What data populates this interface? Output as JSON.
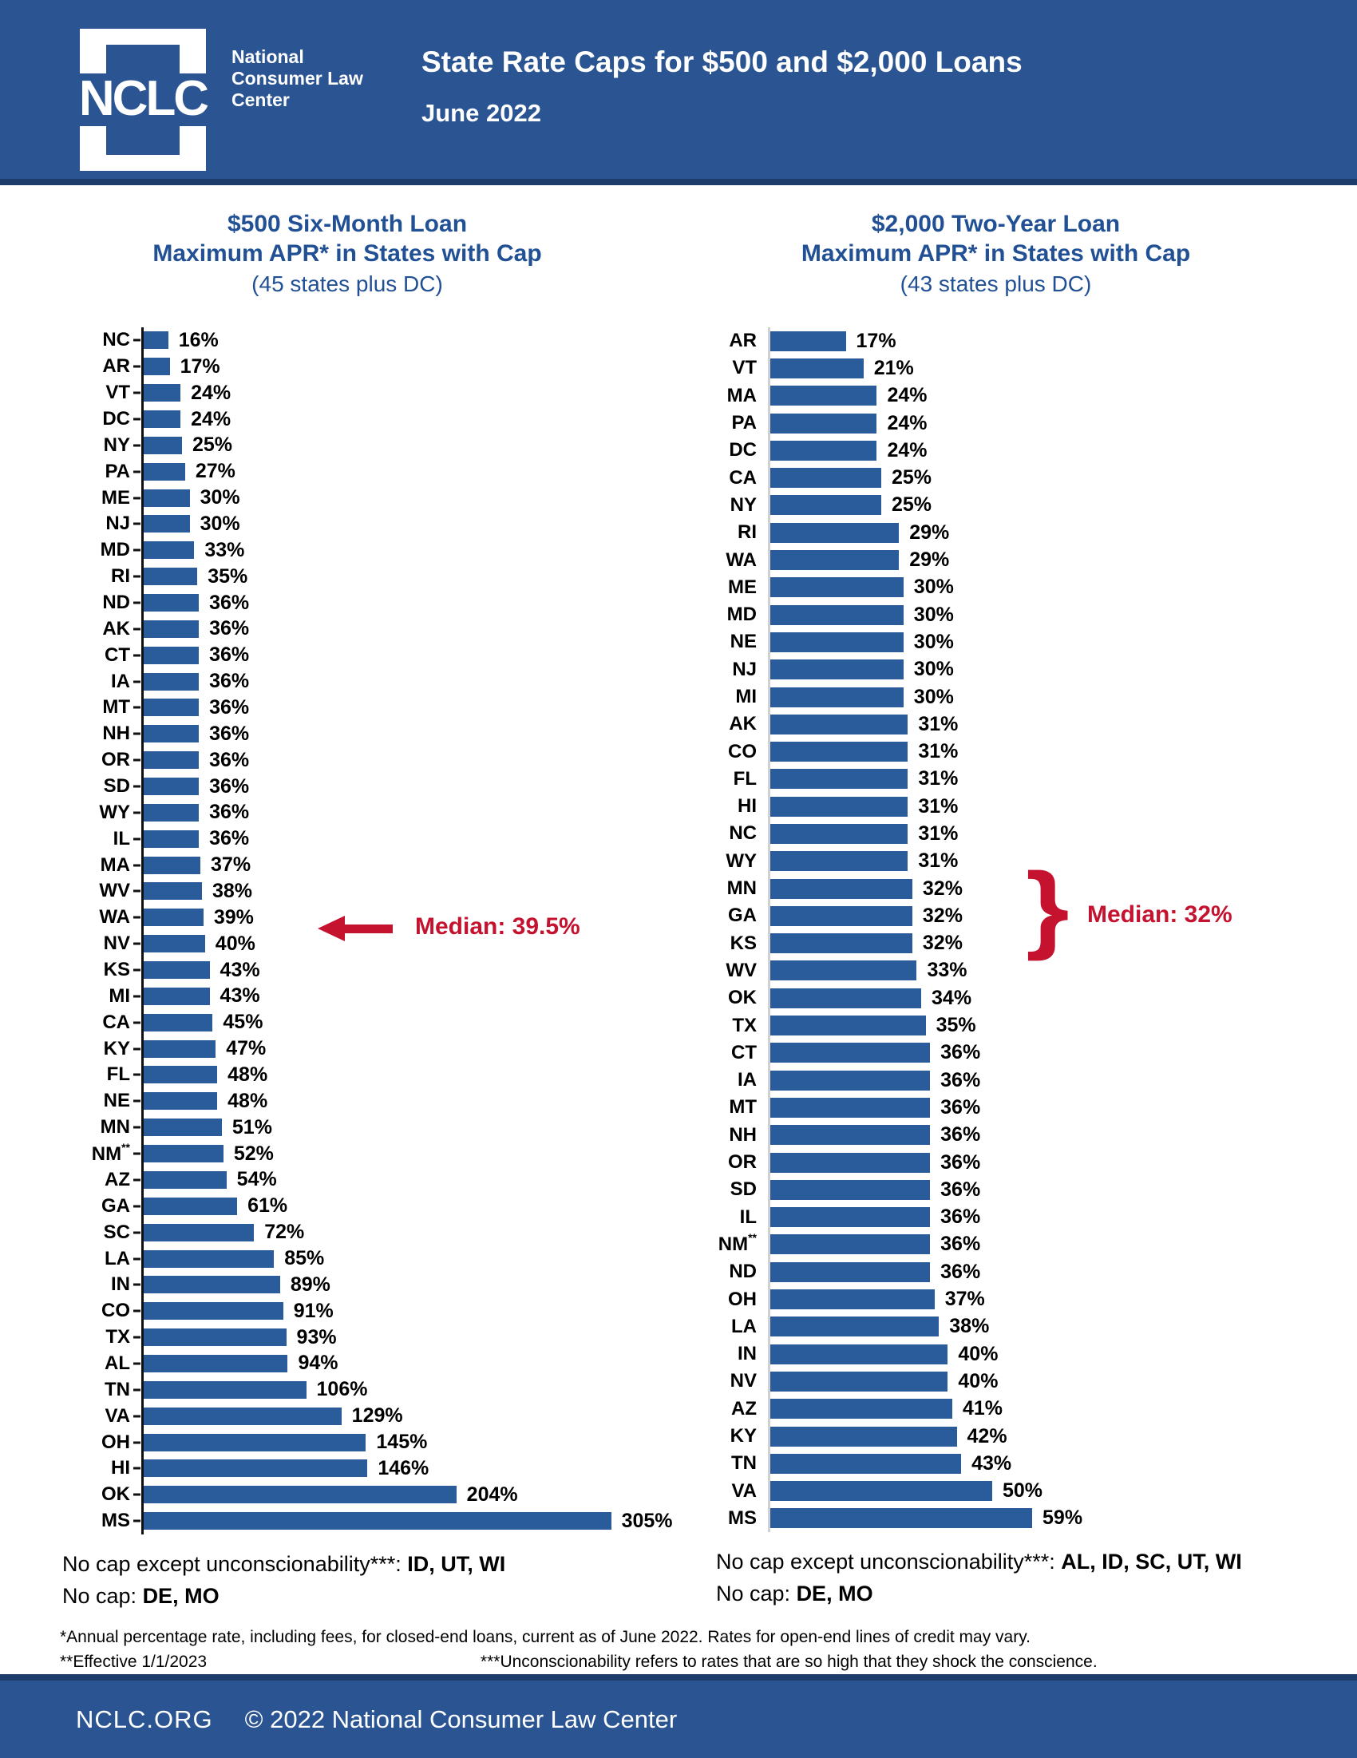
{
  "header": {
    "logo_acronym": "NCLC",
    "logo_name": "National Consumer Law Center",
    "title": "State Rate Caps for $500 and $2,000 Loans",
    "date": "June 2022"
  },
  "chart_data": [
    {
      "type": "bar",
      "orientation": "horizontal",
      "title_line1": "$500 Six-Month Loan",
      "title_line2": "Maximum APR* in States with Cap",
      "subtitle": "(45 states plus DC)",
      "value_suffix": "%",
      "categories": [
        "NC",
        "AR",
        "VT",
        "DC",
        "NY",
        "PA",
        "ME",
        "NJ",
        "MD",
        "RI",
        "ND",
        "AK",
        "CT",
        "IA",
        "MT",
        "NH",
        "OR",
        "SD",
        "WY",
        "IL",
        "MA",
        "WV",
        "WA",
        "NV",
        "KS",
        "MI",
        "CA",
        "KY",
        "FL",
        "NE",
        "MN",
        "NM**",
        "AZ",
        "GA",
        "SC",
        "LA",
        "IN",
        "CO",
        "TX",
        "AL",
        "TN",
        "VA",
        "OH",
        "HI",
        "OK",
        "MS"
      ],
      "values": [
        16,
        17,
        24,
        24,
        25,
        27,
        30,
        30,
        33,
        35,
        36,
        36,
        36,
        36,
        36,
        36,
        36,
        36,
        36,
        36,
        37,
        38,
        39,
        40,
        43,
        43,
        45,
        47,
        48,
        48,
        51,
        52,
        54,
        61,
        72,
        85,
        89,
        91,
        93,
        94,
        106,
        129,
        145,
        146,
        204,
        305
      ],
      "xlim": [
        0,
        320
      ],
      "grid": false,
      "median": 39.5,
      "median_label": "Median: 39.5%",
      "annotation_style": "arrow",
      "no_cap_except_label": "No cap except unconscionability***: ",
      "no_cap_except_states": [
        "ID",
        "UT",
        "WI"
      ],
      "no_cap_label": "No cap: ",
      "no_cap_states": [
        "DE",
        "MO"
      ]
    },
    {
      "type": "bar",
      "orientation": "horizontal",
      "title_line1": "$2,000 Two-Year Loan",
      "title_line2": "Maximum APR* in States with Cap",
      "subtitle": "(43 states plus DC)",
      "value_suffix": "%",
      "categories": [
        "AR",
        "VT",
        "MA",
        "PA",
        "DC",
        "CA",
        "NY",
        "RI",
        "WA",
        "ME",
        "MD",
        "NE",
        "NJ",
        "MI",
        "AK",
        "CO",
        "FL",
        "HI",
        "NC",
        "WY",
        "MN",
        "GA",
        "KS",
        "WV",
        "OK",
        "TX",
        "CT",
        "IA",
        "MT",
        "NH",
        "OR",
        "SD",
        "IL",
        "NM**",
        "ND",
        "OH",
        "LA",
        "IN",
        "NV",
        "AZ",
        "KY",
        "TN",
        "VA",
        "MS"
      ],
      "values": [
        17,
        21,
        24,
        24,
        24,
        25,
        25,
        29,
        29,
        30,
        30,
        30,
        30,
        30,
        31,
        31,
        31,
        31,
        31,
        31,
        32,
        32,
        32,
        33,
        34,
        35,
        36,
        36,
        36,
        36,
        36,
        36,
        36,
        36,
        36,
        37,
        38,
        40,
        40,
        41,
        42,
        43,
        50,
        59
      ],
      "xlim": [
        0,
        62
      ],
      "grid": false,
      "median": 32,
      "median_label": "Median: 32%",
      "annotation_style": "brace",
      "no_cap_except_label": "No cap except unconscionability***: ",
      "no_cap_except_states": [
        "AL",
        "ID",
        "SC",
        "UT",
        "WI"
      ],
      "no_cap_label": "No cap: ",
      "no_cap_states": [
        "DE",
        "MO"
      ]
    }
  ],
  "footnotes": {
    "line1": "*Annual percentage rate, including fees, for closed-end loans, current as of June 2022. Rates for open-end lines of credit may vary.",
    "line2a": "**Effective 1/1/2023",
    "line2b": "***Unconscionability refers to rates that are so high that they shock the conscience."
  },
  "footer": {
    "site": "NCLC.ORG",
    "copyright": "© 2022 National Consumer Law Center"
  },
  "annotations": {
    "brace_glyph": "}"
  },
  "colors": {
    "header_bg": "#2b5592",
    "accent_border": "#1d3c6c",
    "bar": "#2a5b9b",
    "title_blue": "#215095",
    "median_red": "#c4122f",
    "axis_gray": "#d0d0d0"
  }
}
